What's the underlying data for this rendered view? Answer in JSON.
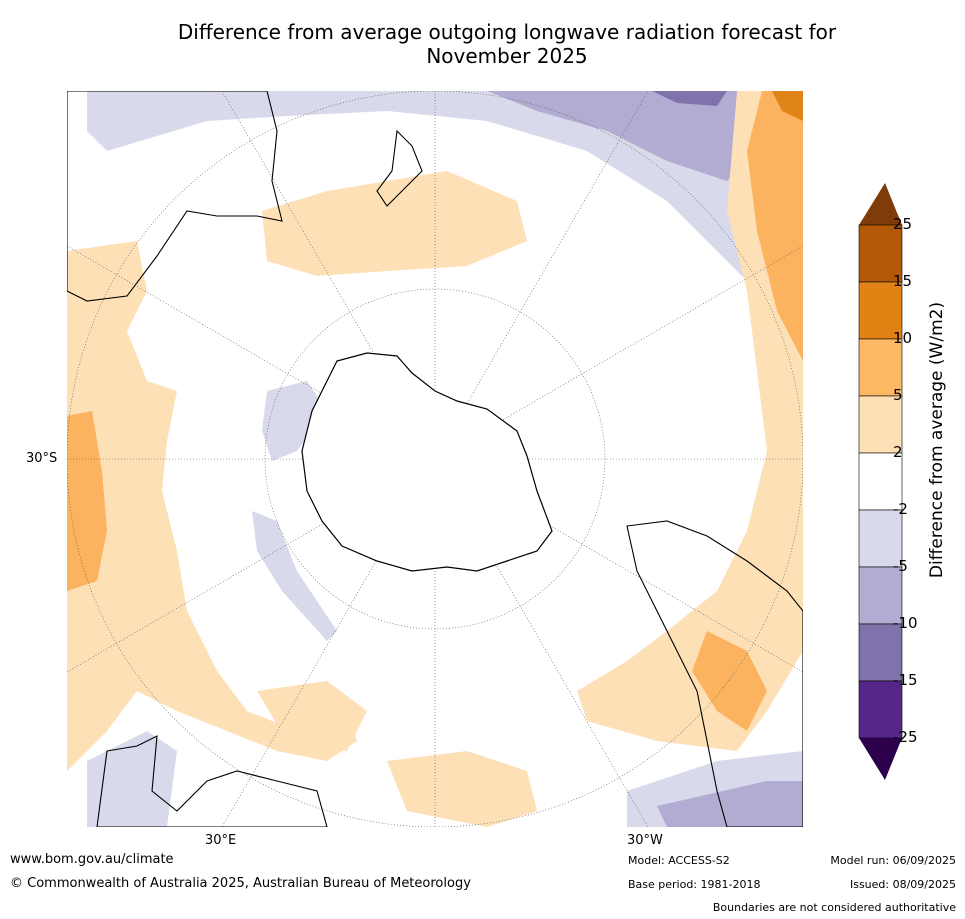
{
  "title": {
    "line1": "Difference from average outgoing longwave radiation forecast for",
    "line2": "November 2025"
  },
  "map": {
    "lat_labels": [
      "30°S"
    ],
    "lon_labels": [
      "30°E",
      "30°W"
    ],
    "colors": {
      "ocean_neutral": "#ffffff",
      "pos_2_5": "#fde0b6",
      "pos_5_10": "#fbb35f",
      "pos_10_15": "#e08318",
      "pos_15_25": "#b35508",
      "neg_2_5": "#d8daeb",
      "neg_5_10": "#b2abd2",
      "neg_10_15": "#8073ac",
      "neg_15_25": "#542788",
      "coast": "#000000",
      "grid": "#666666"
    }
  },
  "colorbar": {
    "label": "Difference from average (W/m2)",
    "ticks": [
      "25",
      "15",
      "10",
      "5",
      "2",
      "-2",
      "-5",
      "-10",
      "-15",
      "-25"
    ],
    "colors": [
      "#7f3b08",
      "#b35806",
      "#e08214",
      "#fdb863",
      "#fee0b6",
      "#ffffff",
      "#d8daeb",
      "#b2abd2",
      "#8073ac",
      "#542788",
      "#2d004b"
    ]
  },
  "footer": {
    "website": "www.bom.gov.au/climate",
    "copyright": "© Commonwealth of Australia 2025, Australian Bureau of Meteorology",
    "model": "Model: ACCESS-S2",
    "base_period": "Base period: 1981-2018",
    "model_run": "Model run: 06/09/2025",
    "issued": "Issued: 08/09/2025",
    "disclaimer": "Boundaries are not considered authoritative"
  }
}
